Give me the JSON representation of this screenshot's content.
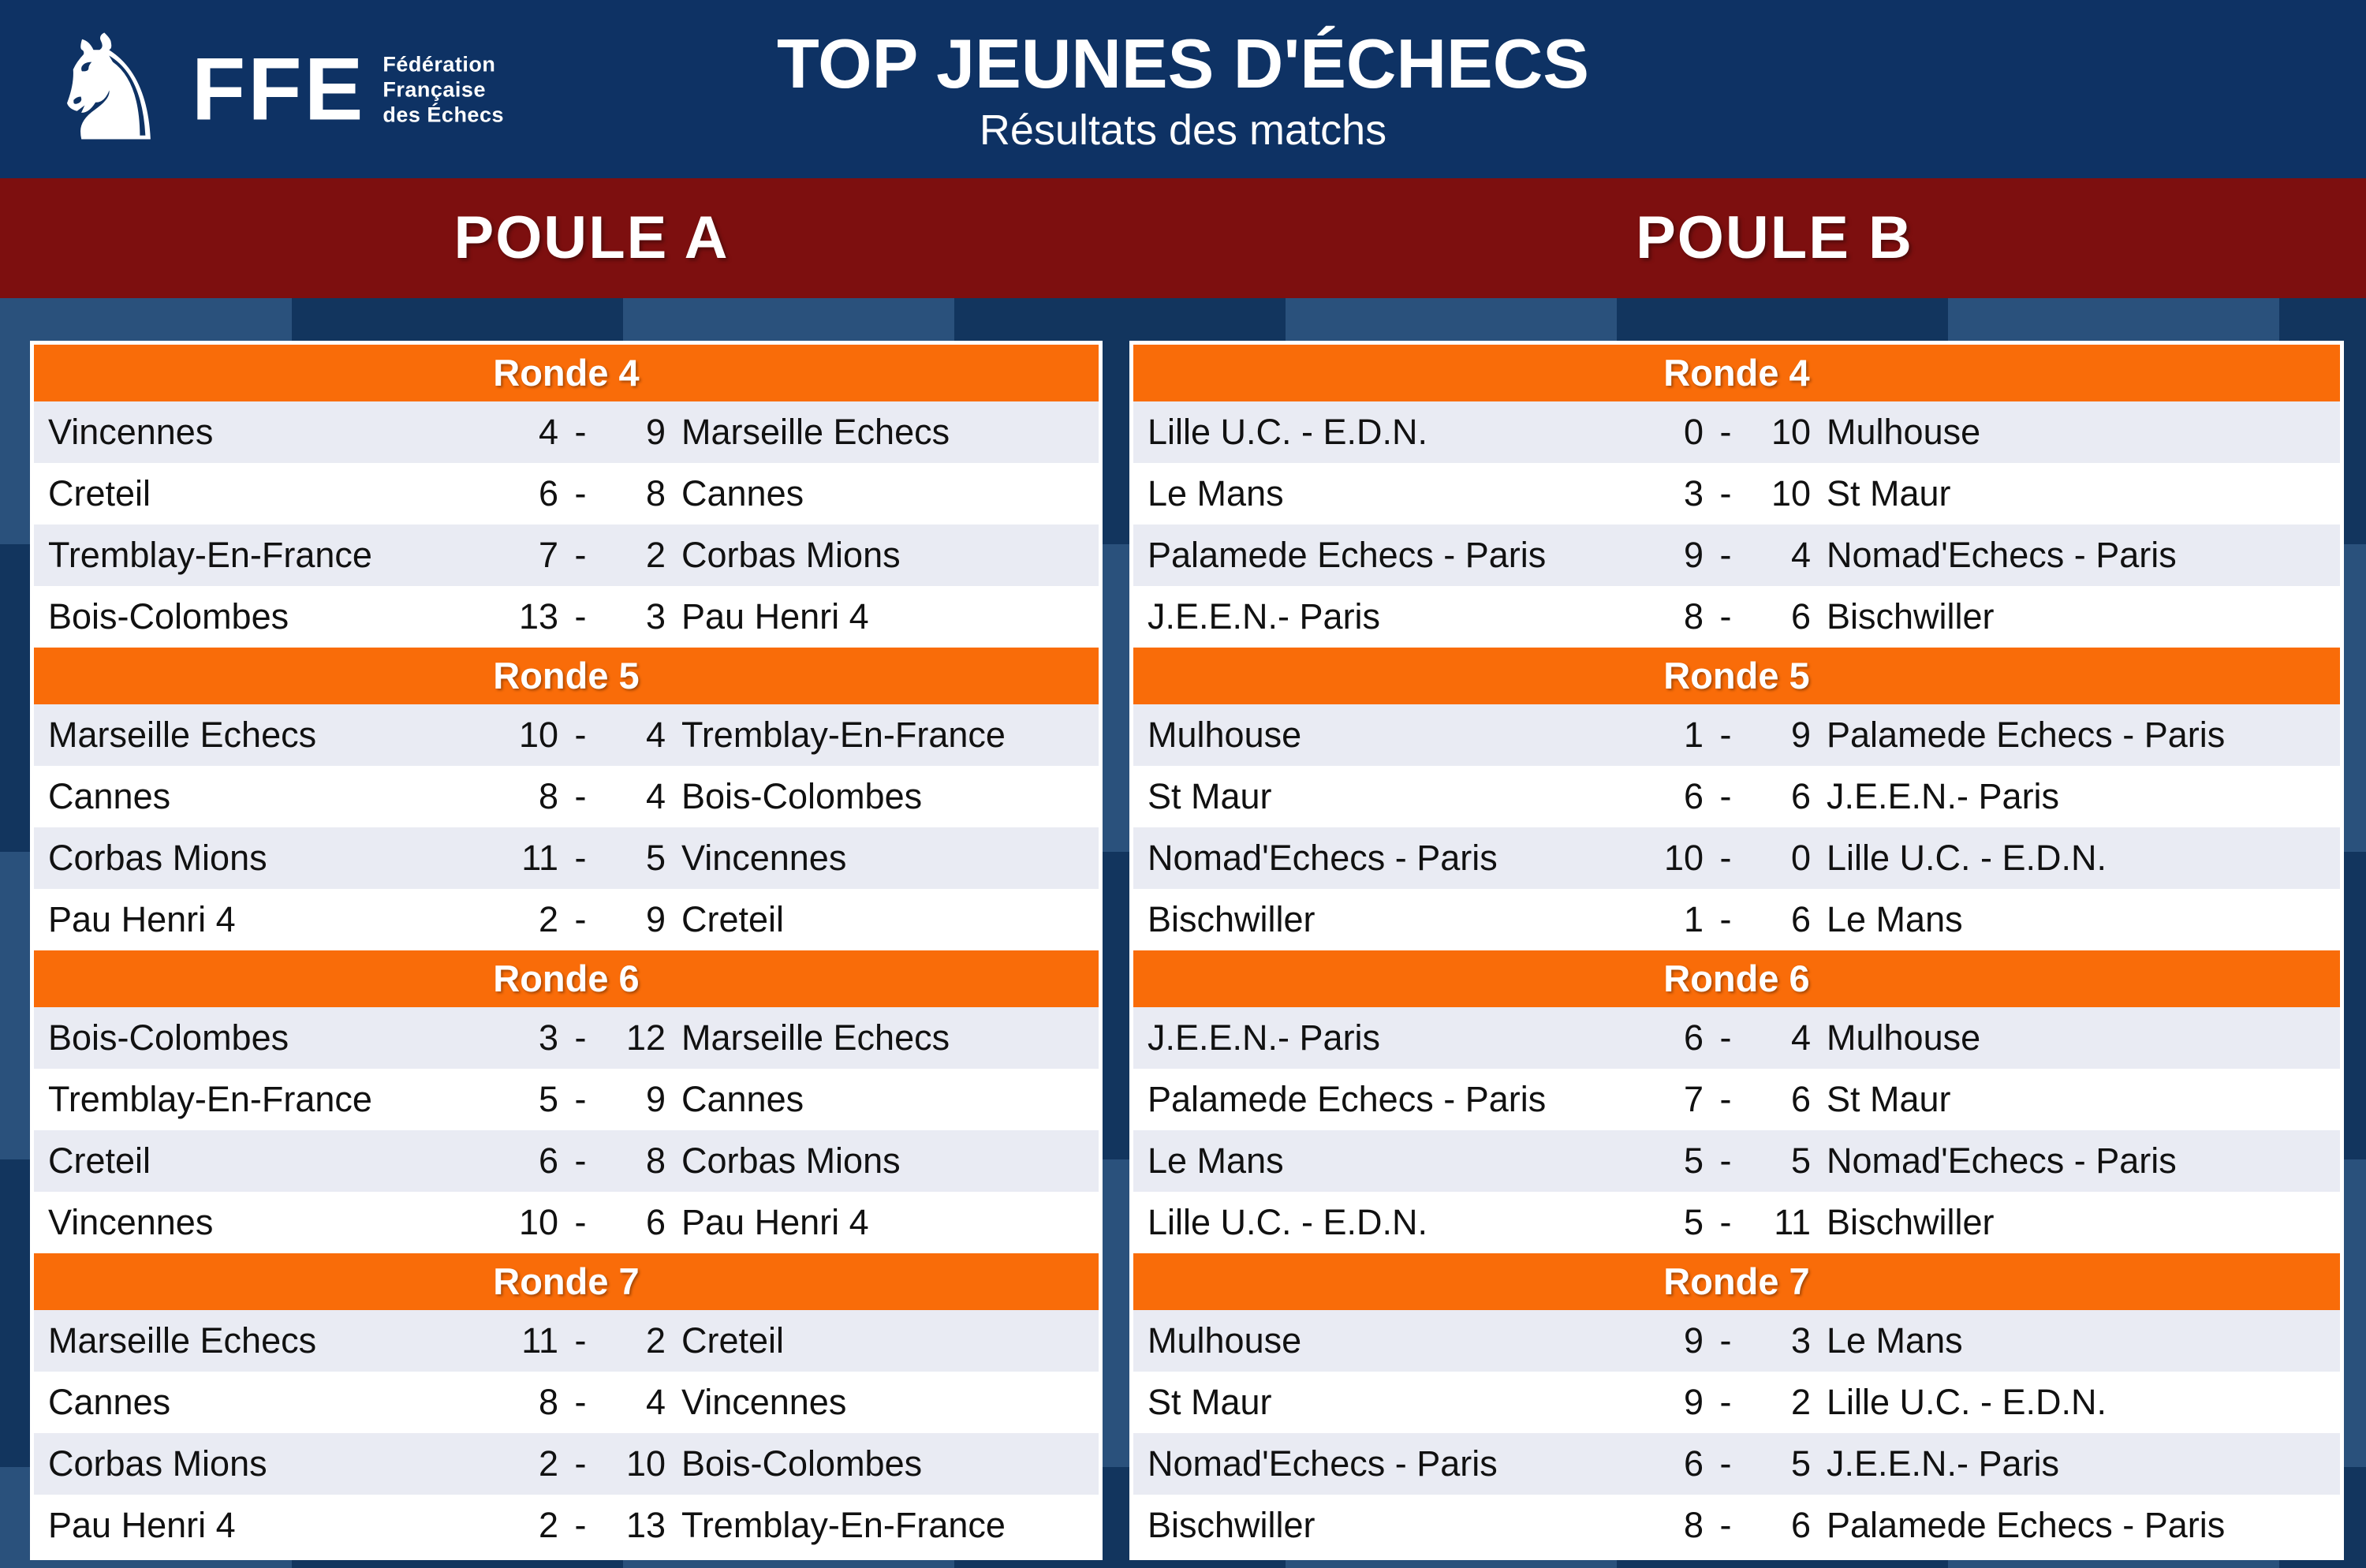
{
  "header": {
    "logo": {
      "acronym": "FFE",
      "org_lines": [
        "Fédération",
        "Française",
        "des Échecs"
      ]
    },
    "title": "TOP JEUNES D'ÉCHECS",
    "subtitle": "Résultats des matchs"
  },
  "banner": {
    "left": "POULE A",
    "right": "POULE B"
  },
  "separator": "-",
  "colors": {
    "header_navy": "#0E3264",
    "banner_red": "#7D0F0F",
    "round_orange": "#F96C09",
    "row_alt": "#E9EBF3",
    "checker_dark": "#12355E",
    "checker_light": "#2A517C"
  },
  "pools": [
    {
      "name": "POULE A",
      "rounds": [
        {
          "label": "Ronde 4",
          "matches": [
            {
              "home": "Vincennes",
              "home_score": "4",
              "away_score": "9",
              "away": "Marseille Echecs"
            },
            {
              "home": "Creteil",
              "home_score": "6",
              "away_score": "8",
              "away": "Cannes"
            },
            {
              "home": "Tremblay-En-France",
              "home_score": "7",
              "away_score": "2",
              "away": "Corbas Mions"
            },
            {
              "home": "Bois-Colombes",
              "home_score": "13",
              "away_score": "3",
              "away": "Pau Henri 4"
            }
          ]
        },
        {
          "label": "Ronde 5",
          "matches": [
            {
              "home": "Marseille Echecs",
              "home_score": "10",
              "away_score": "4",
              "away": "Tremblay-En-France"
            },
            {
              "home": "Cannes",
              "home_score": "8",
              "away_score": "4",
              "away": "Bois-Colombes"
            },
            {
              "home": "Corbas Mions",
              "home_score": "11",
              "away_score": "5",
              "away": "Vincennes"
            },
            {
              "home": "Pau Henri 4",
              "home_score": "2",
              "away_score": "9",
              "away": "Creteil"
            }
          ]
        },
        {
          "label": "Ronde 6",
          "matches": [
            {
              "home": "Bois-Colombes",
              "home_score": "3",
              "away_score": "12",
              "away": "Marseille Echecs"
            },
            {
              "home": "Tremblay-En-France",
              "home_score": "5",
              "away_score": "9",
              "away": "Cannes"
            },
            {
              "home": "Creteil",
              "home_score": "6",
              "away_score": "8",
              "away": "Corbas Mions"
            },
            {
              "home": "Vincennes",
              "home_score": "10",
              "away_score": "6",
              "away": "Pau Henri 4"
            }
          ]
        },
        {
          "label": "Ronde 7",
          "matches": [
            {
              "home": "Marseille Echecs",
              "home_score": "11",
              "away_score": "2",
              "away": "Creteil"
            },
            {
              "home": "Cannes",
              "home_score": "8",
              "away_score": "4",
              "away": "Vincennes"
            },
            {
              "home": "Corbas Mions",
              "home_score": "2",
              "away_score": "10",
              "away": "Bois-Colombes"
            },
            {
              "home": "Pau Henri 4",
              "home_score": "2",
              "away_score": "13",
              "away": "Tremblay-En-France"
            }
          ]
        }
      ]
    },
    {
      "name": "POULE B",
      "rounds": [
        {
          "label": "Ronde 4",
          "matches": [
            {
              "home": "Lille U.C. - E.D.N.",
              "home_score": "0",
              "away_score": "10",
              "away": "Mulhouse"
            },
            {
              "home": "Le Mans",
              "home_score": "3",
              "away_score": "10",
              "away": "St Maur"
            },
            {
              "home": "Palamede Echecs - Paris",
              "home_score": "9",
              "away_score": "4",
              "away": "Nomad'Echecs - Paris"
            },
            {
              "home": "J.E.E.N.- Paris",
              "home_score": "8",
              "away_score": "6",
              "away": "Bischwiller"
            }
          ]
        },
        {
          "label": "Ronde 5",
          "matches": [
            {
              "home": "Mulhouse",
              "home_score": "1",
              "away_score": "9",
              "away": "Palamede Echecs - Paris"
            },
            {
              "home": "St Maur",
              "home_score": "6",
              "away_score": "6",
              "away": "J.E.E.N.- Paris"
            },
            {
              "home": "Nomad'Echecs - Paris",
              "home_score": "10",
              "away_score": "0",
              "away": "Lille U.C. - E.D.N."
            },
            {
              "home": "Bischwiller",
              "home_score": "1",
              "away_score": "6",
              "away": "Le Mans"
            }
          ]
        },
        {
          "label": "Ronde 6",
          "matches": [
            {
              "home": "J.E.E.N.- Paris",
              "home_score": "6",
              "away_score": "4",
              "away": "Mulhouse"
            },
            {
              "home": "Palamede Echecs - Paris",
              "home_score": "7",
              "away_score": "6",
              "away": "St Maur"
            },
            {
              "home": "Le Mans",
              "home_score": "5",
              "away_score": "5",
              "away": "Nomad'Echecs - Paris"
            },
            {
              "home": "Lille U.C. - E.D.N.",
              "home_score": "5",
              "away_score": "11",
              "away": "Bischwiller"
            }
          ]
        },
        {
          "label": "Ronde 7",
          "matches": [
            {
              "home": "Mulhouse",
              "home_score": "9",
              "away_score": "3",
              "away": "Le Mans"
            },
            {
              "home": "St Maur",
              "home_score": "9",
              "away_score": "2",
              "away": "Lille U.C. - E.D.N."
            },
            {
              "home": "Nomad'Echecs - Paris",
              "home_score": "6",
              "away_score": "5",
              "away": "J.E.E.N.- Paris"
            },
            {
              "home": "Bischwiller",
              "home_score": "8",
              "away_score": "6",
              "away": "Palamede Echecs - Paris"
            }
          ]
        }
      ]
    }
  ]
}
